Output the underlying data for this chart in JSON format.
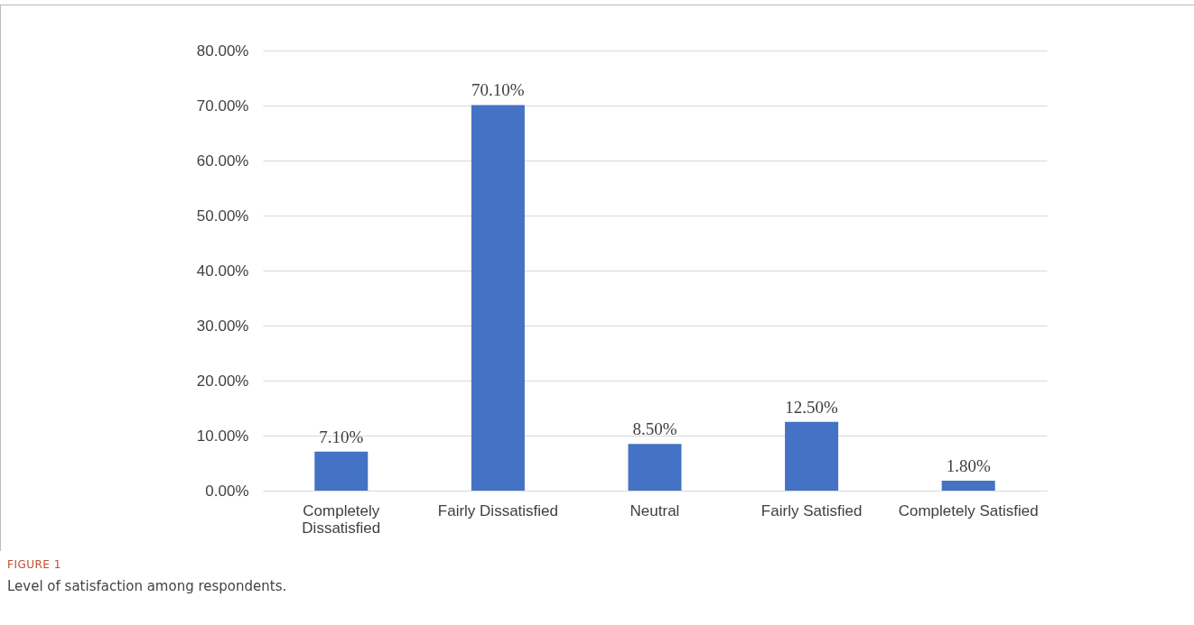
{
  "chart_data": {
    "type": "bar",
    "categories": [
      "Completely Dissatisfied",
      "Fairly Dissatisfied",
      "Neutral",
      "Fairly Satisfied",
      "Completely Satisfied"
    ],
    "values": [
      7.1,
      70.1,
      8.5,
      12.5,
      1.8
    ],
    "value_labels": [
      "7.10%",
      "70.10%",
      "8.50%",
      "12.50%",
      "1.80%"
    ],
    "color": "#4472c4",
    "ylim": [
      0,
      80
    ],
    "yticks": [
      {
        "value": 0,
        "label": "0.00%"
      },
      {
        "value": 10,
        "label": "10.00%"
      },
      {
        "value": 20,
        "label": "20.00%"
      },
      {
        "value": 30,
        "label": "30.00%"
      },
      {
        "value": 40,
        "label": "40.00%"
      },
      {
        "value": 50,
        "label": "50.00%"
      },
      {
        "value": 60,
        "label": "60.00%"
      },
      {
        "value": 70,
        "label": "70.00%"
      },
      {
        "value": 80,
        "label": "80.00%"
      }
    ],
    "grid": "y",
    "annotations": [
      "FIGURE 1",
      "Level of satisfaction among respondents."
    ]
  }
}
